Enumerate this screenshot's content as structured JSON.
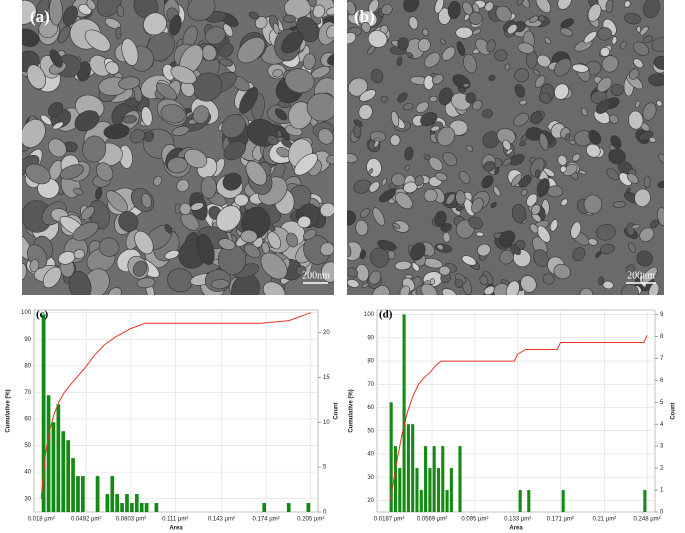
{
  "images": [
    {
      "label": "(a)",
      "scale": "200nm"
    },
    {
      "label": "(b)",
      "scale": "200nm"
    }
  ],
  "chart_data": [
    {
      "type": "histogram",
      "label": "(c)",
      "xlabel": "Area",
      "ylabel": "Cumulative (%)",
      "y2label": "Count",
      "grid": true,
      "xlim": [
        0.013,
        0.21
      ],
      "xticks": [
        {
          "value": 0.018,
          "label": "0.018 µm²"
        },
        {
          "value": 0.0492,
          "label": "0.0492 µm²"
        },
        {
          "value": 0.0803,
          "label": "0.0803 µm²"
        },
        {
          "value": 0.111,
          "label": "0.111 µm²"
        },
        {
          "value": 0.143,
          "label": "0.143 µm²"
        },
        {
          "value": 0.174,
          "label": "0.174 µm²"
        },
        {
          "value": 0.205,
          "label": "0.205 µm²"
        }
      ],
      "ylim": [
        25,
        101
      ],
      "yticks": [
        30,
        40,
        50,
        60,
        70,
        80,
        90,
        100
      ],
      "y2lim": [
        0,
        22.5
      ],
      "y2ticks": [
        0,
        5,
        10,
        15,
        20
      ],
      "bins": [
        0.018,
        0.0214,
        0.0248,
        0.0282,
        0.0316,
        0.035,
        0.0384,
        0.0418,
        0.0452,
        0.0486,
        0.052,
        0.0554,
        0.0588,
        0.0622,
        0.0656,
        0.069,
        0.0724,
        0.0758,
        0.0792,
        0.0826,
        0.086,
        0.0894,
        0.0928,
        0.0962,
        0.0996,
        0.103,
        0.1064,
        0.1098,
        0.1132,
        0.1166,
        0.12,
        0.1234,
        0.1268,
        0.1302,
        0.1336,
        0.137,
        0.1404,
        0.1438,
        0.1472,
        0.1506,
        0.154,
        0.1574,
        0.1608,
        0.1642,
        0.1676,
        0.171,
        0.1744,
        0.1778,
        0.1812,
        0.1846,
        0.188,
        0.1914,
        0.1948,
        0.1982,
        0.2016,
        0.205
      ],
      "bars": {
        "color": "#138a13",
        "axis": "y2",
        "values": [
          22,
          13,
          10,
          12,
          9,
          8,
          6,
          4,
          4,
          0,
          0,
          4,
          0,
          2,
          4,
          2,
          1,
          2,
          1,
          2,
          1,
          1,
          0,
          1,
          0,
          0,
          0,
          0,
          0,
          0,
          0,
          0,
          0,
          0,
          0,
          0,
          0,
          0,
          0,
          0,
          0,
          0,
          0,
          0,
          0,
          1,
          0,
          0,
          0,
          0,
          1,
          0,
          0,
          0,
          1
        ]
      },
      "line": {
        "color": "#e8322a",
        "x": [
          0.018,
          0.021,
          0.024,
          0.027,
          0.03,
          0.034,
          0.04,
          0.048,
          0.055,
          0.062,
          0.07,
          0.08,
          0.09,
          0.1,
          0.17,
          0.19,
          0.205
        ],
        "values": [
          30,
          47,
          56,
          62,
          66,
          70,
          74,
          79,
          84,
          88,
          91,
          94,
          96,
          96,
          96,
          97,
          100
        ]
      }
    },
    {
      "type": "histogram",
      "label": "(d)",
      "xlabel": "Area",
      "ylabel": "Cumulative (%)",
      "y2label": "Count",
      "grid": true,
      "xlim": [
        0.008,
        0.255
      ],
      "xticks": [
        {
          "value": 0.0187,
          "label": "0.0187 µm²"
        },
        {
          "value": 0.0569,
          "label": "0.0569 µm²"
        },
        {
          "value": 0.095,
          "label": "0.095 µm²"
        },
        {
          "value": 0.133,
          "label": "0.133 µm²"
        },
        {
          "value": 0.171,
          "label": "0.171 µm²"
        },
        {
          "value": 0.21,
          "label": "0.21 µm²"
        },
        {
          "value": 0.248,
          "label": "0.248 µm²"
        }
      ],
      "ylim": [
        15,
        102
      ],
      "yticks": [
        20,
        30,
        40,
        50,
        60,
        70,
        80,
        90,
        100
      ],
      "y2lim": [
        0,
        9.2
      ],
      "y2ticks": [
        0,
        1,
        2,
        3,
        4,
        5,
        6,
        7,
        8,
        9
      ],
      "bins": [
        0.0187,
        0.02252,
        0.02634,
        0.03016,
        0.03398,
        0.0378,
        0.04162,
        0.04544,
        0.04926,
        0.05308,
        0.0569,
        0.06072,
        0.06454,
        0.06836,
        0.07218,
        0.076,
        0.07982,
        0.08364,
        0.08746,
        0.09128,
        0.0951,
        0.09892,
        0.10274,
        0.10656,
        0.11038,
        0.1142,
        0.11802,
        0.12184,
        0.12566,
        0.12948,
        0.1333,
        0.13712,
        0.14094,
        0.14476,
        0.14858,
        0.1524,
        0.15622,
        0.16004,
        0.16386,
        0.16768,
        0.1715,
        0.17532,
        0.17914,
        0.18296,
        0.18678,
        0.1906,
        0.19442,
        0.19824,
        0.20206,
        0.20588,
        0.2097,
        0.21352,
        0.21734,
        0.22116,
        0.22498,
        0.2288,
        0.23262,
        0.23644,
        0.24026,
        0.24408,
        0.2479
      ],
      "bars": {
        "color": "#138a13",
        "axis": "y2",
        "values": [
          5,
          3,
          2,
          9,
          4,
          4,
          2,
          1,
          3,
          2,
          3,
          2,
          3,
          1,
          2,
          0,
          3,
          0,
          0,
          0,
          0,
          0,
          0,
          0,
          0,
          0,
          0,
          0,
          0,
          0,
          1,
          0,
          1,
          0,
          0,
          0,
          0,
          0,
          0,
          0,
          1,
          0,
          0,
          0,
          0,
          0,
          0,
          0,
          0,
          0,
          0,
          0,
          0,
          0,
          0,
          0,
          0,
          0,
          0,
          1
        ]
      },
      "line": {
        "color": "#e8322a",
        "x": [
          0.02,
          0.025,
          0.03,
          0.035,
          0.04,
          0.045,
          0.05,
          0.055,
          0.06,
          0.065,
          0.095,
          0.13,
          0.133,
          0.14,
          0.168,
          0.171,
          0.245,
          0.248
        ],
        "values": [
          20,
          35,
          48,
          58,
          65,
          70,
          73,
          75,
          78,
          80,
          80,
          80,
          83,
          85,
          85,
          88,
          88,
          91
        ]
      }
    }
  ]
}
